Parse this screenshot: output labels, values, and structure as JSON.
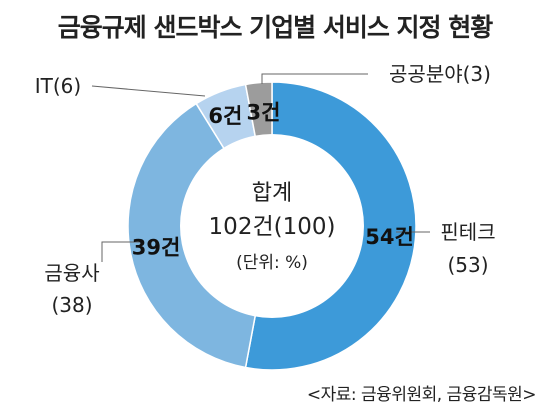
{
  "title": "금융규제 샌드박스 기업별 서비스 지정 현황",
  "source": "<자료: 금융위원회, 금융감독원>",
  "center": {
    "line1": "합계",
    "line2": "102건(100)",
    "line3": "(단위: %)"
  },
  "chart_data": {
    "type": "pie",
    "variant": "donut",
    "categories": [
      "핀테크",
      "금융사",
      "IT",
      "공공분야"
    ],
    "values": [
      54,
      39,
      6,
      3
    ],
    "value_labels": [
      "54건",
      "39건",
      "6건",
      "3건"
    ],
    "percents": [
      53,
      38,
      6,
      3
    ],
    "outer_labels": [
      {
        "name": "핀테크",
        "pct": "(53)"
      },
      {
        "name": "금융사",
        "pct": "(38)"
      },
      {
        "name": "IT(6)",
        "pct": ""
      },
      {
        "name": "공공분야(3)",
        "pct": ""
      }
    ],
    "colors": [
      "#3d9ad9",
      "#7eb6e0",
      "#b6d3ef",
      "#9c9c9c"
    ],
    "total_label": "102건(100)"
  }
}
